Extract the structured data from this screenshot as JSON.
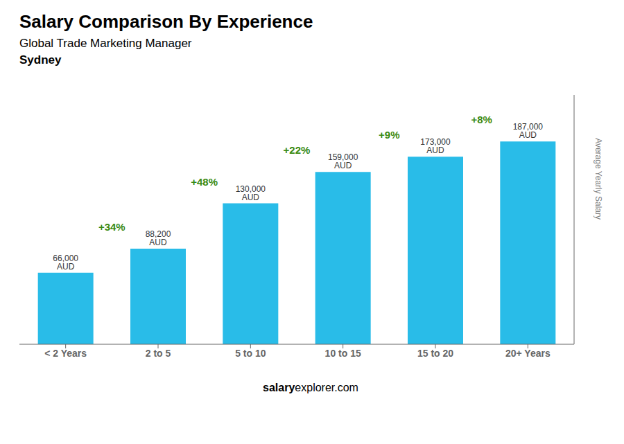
{
  "chart_data": {
    "type": "bar",
    "title": "Salary Comparison By Experience",
    "subtitle": "Global Trade Marketing Manager",
    "city": "Sydney",
    "y_label": "Average Yearly Salary",
    "footer": [
      "salary",
      "explorer.com"
    ],
    "categories": [
      "< 2 Years",
      "2 to 5",
      "5 to 10",
      "10 to 15",
      "15 to 20",
      "20+ Years"
    ],
    "values": [
      66000,
      88200,
      130000,
      159000,
      173000,
      187000
    ],
    "value_labels": [
      "66,000 AUD",
      "88,200 AUD",
      "130,000 AUD",
      "159,000 AUD",
      "173,000 AUD",
      "187,000 AUD"
    ],
    "data_labels": true,
    "annotations": [
      "+34%",
      "+48%",
      "+22%",
      "+9%",
      "+8%"
    ],
    "color": "#29bce8",
    "ylim": [
      0,
      230000
    ],
    "tick_labels": "x"
  }
}
